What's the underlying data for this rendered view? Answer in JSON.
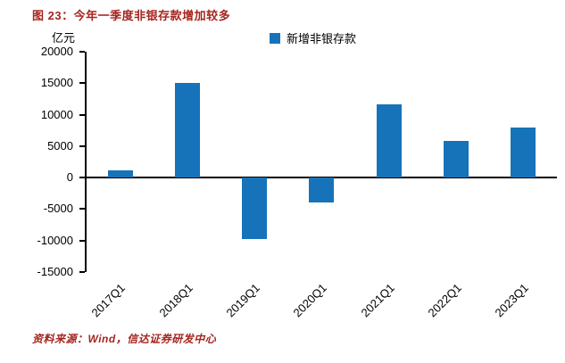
{
  "title": "图 23：今年一季度非银存款增加较多",
  "unit_label": "亿元",
  "legend": {
    "label": "新增非银存款",
    "color": "#1673B9"
  },
  "source": "资料来源：Wind，信达证券研发中心",
  "colors": {
    "title_red": "#A6251F",
    "bar_blue": "#1673B9",
    "axis_black": "#000000"
  },
  "chart_data": {
    "type": "bar",
    "title": "图 23：今年一季度非银存款增加较多",
    "series_name": "新增非银存款",
    "categories": [
      "2017Q1",
      "2018Q1",
      "2019Q1",
      "2020Q1",
      "2021Q1",
      "2022Q1",
      "2023Q1"
    ],
    "values": [
      1200,
      15000,
      -9700,
      -4000,
      11700,
      5800,
      8000
    ],
    "xlabel": "",
    "ylabel": "亿元",
    "ylim": [
      -15000,
      20000
    ],
    "yticks": [
      20000,
      15000,
      10000,
      5000,
      0,
      -5000,
      -10000,
      -15000
    ],
    "grid": false,
    "legend_position": "top",
    "bar_color": "#1673B9"
  }
}
